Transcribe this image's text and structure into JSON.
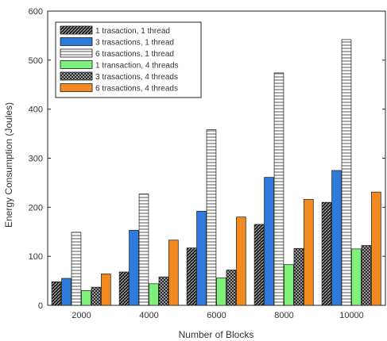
{
  "chart_data": {
    "type": "bar",
    "title": "",
    "xlabel": "Number of Blocks",
    "ylabel": "Energy Consumption (Joules)",
    "categories": [
      "2000",
      "4000",
      "6000",
      "8000",
      "10000"
    ],
    "ylim": [
      0,
      600
    ],
    "yticks": [
      "0",
      "100",
      "200",
      "300",
      "400",
      "500",
      "600"
    ],
    "grid": false,
    "legend_position": "top-left",
    "series": [
      {
        "name": "1 trasaction, 1 thread",
        "values": [
          48,
          68,
          117,
          165,
          210
        ],
        "fill": "#222222",
        "pattern": "diag-dark"
      },
      {
        "name": "3 trasactions, 1 thread",
        "values": [
          55,
          153,
          192,
          261,
          275
        ],
        "fill": "#2f7bdc",
        "pattern": "solid"
      },
      {
        "name": "6 trasactions, 1 thread",
        "values": [
          149,
          227,
          358,
          474,
          542
        ],
        "fill": "#ffffff",
        "pattern": "hstripe"
      },
      {
        "name": "1 transaction, 4 threads",
        "values": [
          30,
          44,
          56,
          83,
          115
        ],
        "fill": "#7ff07a",
        "pattern": "solid"
      },
      {
        "name": "3 trasactions, 4 threads",
        "values": [
          37,
          58,
          72,
          116,
          122
        ],
        "fill": "#333333",
        "pattern": "check"
      },
      {
        "name": "6 trasactions, 4 threads",
        "values": [
          64,
          133,
          180,
          216,
          231
        ],
        "fill": "#f38a1f",
        "pattern": "solid"
      }
    ]
  }
}
